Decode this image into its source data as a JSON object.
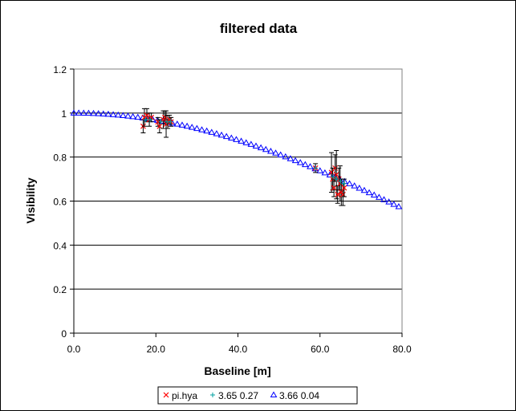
{
  "chart_data": {
    "type": "scatter",
    "title": "filtered data",
    "xlabel": "Baseline [m]",
    "ylabel": "Visibility",
    "xlim": [
      0,
      80
    ],
    "ylim": [
      0,
      1.2
    ],
    "x_ticks": [
      0,
      20,
      40,
      60,
      80
    ],
    "x_tick_labels": [
      "0.0",
      "20.0",
      "40.0",
      "60.0",
      "80.0"
    ],
    "y_ticks": [
      0,
      0.2,
      0.4,
      0.6,
      0.8,
      1,
      1.2
    ],
    "y_tick_labels": [
      "0",
      "0.2",
      "0.4",
      "0.6",
      "0.8",
      "1",
      "1.2"
    ],
    "grid": "horizontal",
    "legend_position": "bottom",
    "series": [
      {
        "name": "pi.hya",
        "marker": "x",
        "color": "#ff0000",
        "points": [
          {
            "x": 16.9,
            "y": 0.94,
            "err": 0.03
          },
          {
            "x": 17.2,
            "y": 0.98,
            "err": 0.04
          },
          {
            "x": 17.8,
            "y": 0.99,
            "err": 0.03
          },
          {
            "x": 18.4,
            "y": 0.97,
            "err": 0.03
          },
          {
            "x": 18.9,
            "y": 0.98,
            "err": 0.02
          },
          {
            "x": 20.5,
            "y": 0.96,
            "err": 0.02
          },
          {
            "x": 20.9,
            "y": 0.94,
            "err": 0.03
          },
          {
            "x": 21.8,
            "y": 0.97,
            "err": 0.04
          },
          {
            "x": 22.2,
            "y": 0.98,
            "err": 0.03
          },
          {
            "x": 22.5,
            "y": 0.95,
            "err": 0.06
          },
          {
            "x": 22.9,
            "y": 0.96,
            "err": 0.03
          },
          {
            "x": 23.3,
            "y": 0.97,
            "err": 0.02
          },
          {
            "x": 23.7,
            "y": 0.96,
            "err": 0.02
          },
          {
            "x": 58.9,
            "y": 0.75,
            "err": 0.02
          },
          {
            "x": 62.8,
            "y": 0.73,
            "err": 0.09
          },
          {
            "x": 63.1,
            "y": 0.7,
            "err": 0.05
          },
          {
            "x": 63.4,
            "y": 0.66,
            "err": 0.04
          },
          {
            "x": 63.7,
            "y": 0.75,
            "err": 0.06
          },
          {
            "x": 64.0,
            "y": 0.72,
            "err": 0.11
          },
          {
            "x": 64.3,
            "y": 0.63,
            "err": 0.04
          },
          {
            "x": 64.6,
            "y": 0.7,
            "err": 0.05
          },
          {
            "x": 64.9,
            "y": 0.68,
            "err": 0.08
          },
          {
            "x": 65.2,
            "y": 0.64,
            "err": 0.06
          },
          {
            "x": 65.6,
            "y": 0.63,
            "err": 0.05
          },
          {
            "x": 65.9,
            "y": 0.66,
            "err": 0.04
          }
        ]
      },
      {
        "name": "3.65 0.27",
        "marker": "plus",
        "color": "#00a0a0",
        "points": [
          {
            "x": 17.5,
            "y": 0.97
          },
          {
            "x": 18.6,
            "y": 0.97
          },
          {
            "x": 21.2,
            "y": 0.96
          },
          {
            "x": 22.7,
            "y": 0.96
          },
          {
            "x": 23.5,
            "y": 0.96
          },
          {
            "x": 58.9,
            "y": 0.75
          },
          {
            "x": 63.2,
            "y": 0.71
          },
          {
            "x": 64.1,
            "y": 0.7
          },
          {
            "x": 65.0,
            "y": 0.69
          },
          {
            "x": 65.8,
            "y": 0.68
          }
        ]
      },
      {
        "name": "3.66 0.04",
        "marker": "triangle",
        "color": "#0000ff",
        "model": {
          "theta": 3.66,
          "x_min": 0,
          "x_max": 80,
          "step": 1.2,
          "lambda_um": 2.2
        }
      }
    ]
  }
}
